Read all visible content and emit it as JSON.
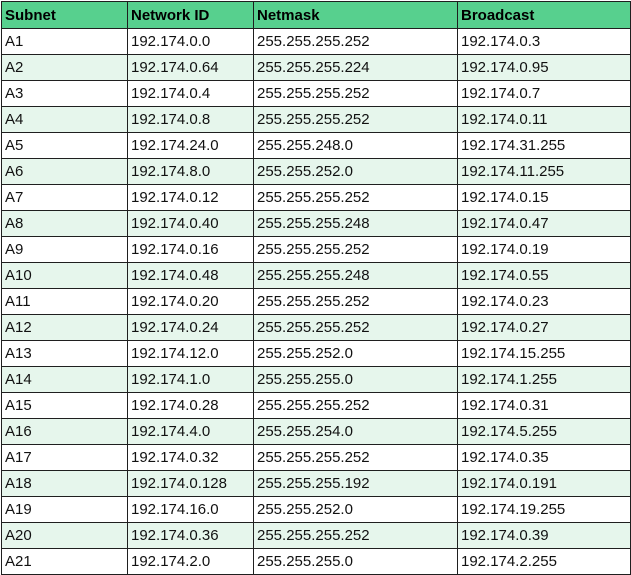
{
  "colors": {
    "header_bg": "#57d08e",
    "stripe_bg": "#e6f6ec",
    "border": "#1f1f1f"
  },
  "table": {
    "headers": [
      "Subnet",
      "Network ID",
      "Netmask",
      "Broadcast"
    ],
    "rows": [
      [
        "A1",
        "192.174.0.0",
        "255.255.255.252",
        "192.174.0.3"
      ],
      [
        "A2",
        "192.174.0.64",
        "255.255.255.224",
        "192.174.0.95"
      ],
      [
        "A3",
        "192.174.0.4",
        "255.255.255.252",
        "192.174.0.7"
      ],
      [
        "A4",
        "192.174.0.8",
        "255.255.255.252",
        "192.174.0.11"
      ],
      [
        "A5",
        "192.174.24.0",
        "255.255.248.0",
        "192.174.31.255"
      ],
      [
        "A6",
        "192.174.8.0",
        "255.255.252.0",
        "192.174.11.255"
      ],
      [
        "A7",
        "192.174.0.12",
        "255.255.255.252",
        "192.174.0.15"
      ],
      [
        "A8",
        "192.174.0.40",
        "255.255.255.248",
        "192.174.0.47"
      ],
      [
        "A9",
        "192.174.0.16",
        "255.255.255.252",
        "192.174.0.19"
      ],
      [
        "A10",
        "192.174.0.48",
        "255.255.255.248",
        "192.174.0.55"
      ],
      [
        "A11",
        "192.174.0.20",
        "255.255.255.252",
        "192.174.0.23"
      ],
      [
        "A12",
        "192.174.0.24",
        "255.255.255.252",
        "192.174.0.27"
      ],
      [
        "A13",
        "192.174.12.0",
        "255.255.252.0",
        "192.174.15.255"
      ],
      [
        "A14",
        "192.174.1.0",
        "255.255.255.0",
        "192.174.1.255"
      ],
      [
        "A15",
        "192.174.0.28",
        "255.255.255.252",
        "192.174.0.31"
      ],
      [
        "A16",
        "192.174.4.0",
        "255.255.254.0",
        "192.174.5.255"
      ],
      [
        "A17",
        "192.174.0.32",
        "255.255.255.252",
        "192.174.0.35"
      ],
      [
        "A18",
        "192.174.0.128",
        "255.255.255.192",
        "192.174.0.191"
      ],
      [
        "A19",
        "192.174.16.0",
        "255.255.252.0",
        "192.174.19.255"
      ],
      [
        "A20",
        "192.174.0.36",
        "255.255.255.252",
        "192.174.0.39"
      ],
      [
        "A21",
        "192.174.2.0",
        "255.255.255.0",
        "192.174.2.255"
      ]
    ]
  }
}
